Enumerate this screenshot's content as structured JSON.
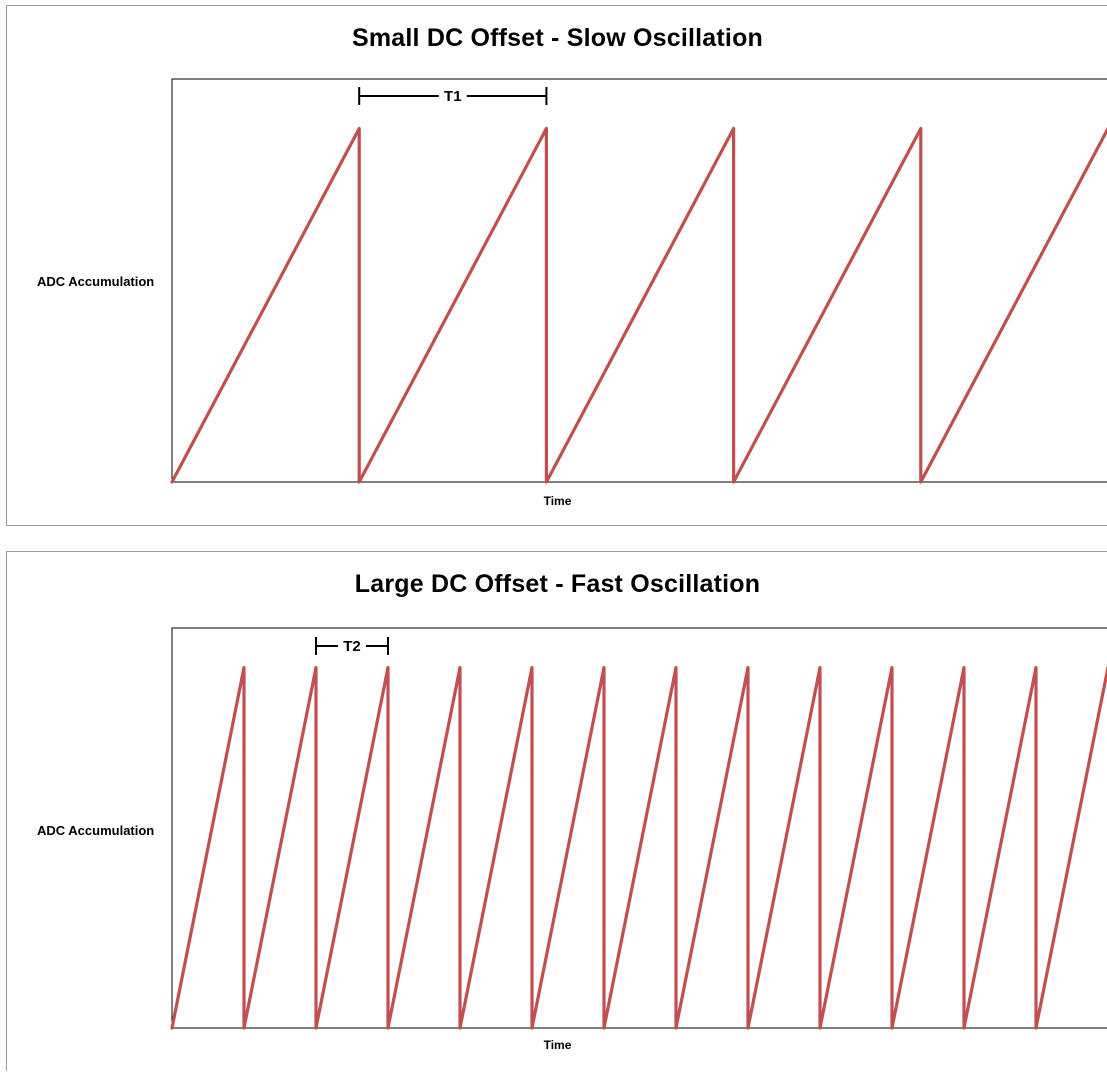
{
  "chart_data": [
    {
      "type": "line",
      "title": "Small DC Offset - Slow Oscillation",
      "xlabel": "Time",
      "ylabel": "ADC Accumulation",
      "grid": false,
      "waveform": "sawtooth",
      "period_label": "T1",
      "x": [
        0,
        1,
        1,
        2,
        2,
        3,
        3,
        4,
        4,
        5
      ],
      "y": [
        0,
        1,
        0,
        1,
        0,
        1,
        0,
        1,
        0,
        1
      ],
      "xlim": [
        0,
        5
      ],
      "ylim": [
        0,
        1.14
      ],
      "period_marker": [
        1,
        2
      ],
      "colors": {
        "line": "#c0504d"
      }
    },
    {
      "type": "line",
      "title": "Large DC Offset - Fast Oscillation",
      "xlabel": "Time",
      "ylabel": "ADC Accumulation",
      "grid": false,
      "waveform": "sawtooth",
      "period_label": "T2",
      "x": [
        0,
        1,
        1,
        2,
        2,
        3,
        3,
        4,
        4,
        5,
        5,
        6,
        6,
        7,
        7,
        8,
        8,
        9,
        9,
        10,
        10,
        11,
        11,
        12,
        12,
        13
      ],
      "y": [
        0,
        1,
        0,
        1,
        0,
        1,
        0,
        1,
        0,
        1,
        0,
        1,
        0,
        1,
        0,
        1,
        0,
        1,
        0,
        1,
        0,
        1,
        0,
        1,
        0,
        1
      ],
      "xlim": [
        0,
        13
      ],
      "ylim": [
        0,
        1.11
      ],
      "period_marker": [
        2,
        3
      ],
      "colors": {
        "line": "#c0504d"
      }
    }
  ]
}
